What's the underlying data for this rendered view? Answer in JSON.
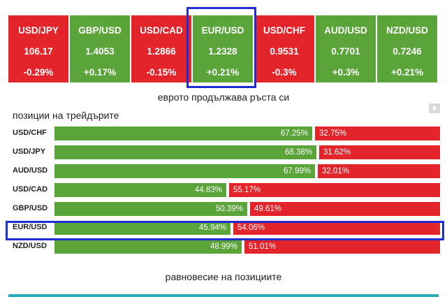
{
  "tiles": [
    {
      "pair": "USD/JPY",
      "price": "106.17",
      "change": "-0.29%",
      "color": "#e3242b"
    },
    {
      "pair": "GBP/USD",
      "price": "1.4053",
      "change": "+0.17%",
      "color": "#5aa43a"
    },
    {
      "pair": "USD/CAD",
      "price": "1.2866",
      "change": "-0.15%",
      "color": "#e3242b"
    },
    {
      "pair": "EUR/USD",
      "price": "1.2328",
      "change": "+0.21%",
      "color": "#5aa43a"
    },
    {
      "pair": "USD/CHF",
      "price": "0.9531",
      "change": "-0.3%",
      "color": "#e3242b"
    },
    {
      "pair": "AUD/USD",
      "price": "0.7701",
      "change": "+0.3%",
      "color": "#5aa43a"
    },
    {
      "pair": "NZD/USD",
      "price": "0.7246",
      "change": "+0.21%",
      "color": "#5aa43a"
    }
  ],
  "subtitle": "еврото продължава ръста си",
  "positions_title": "позиции на трейдърите",
  "positions": [
    {
      "pair": "USD/CHF",
      "long": 67.25,
      "short": 32.75,
      "long_label": "67.25%",
      "short_label": "32.75%"
    },
    {
      "pair": "USD/JPY",
      "long": 68.38,
      "short": 31.62,
      "long_label": "68.38%",
      "short_label": "31.62%"
    },
    {
      "pair": "AUD/USD",
      "long": 67.99,
      "short": 32.01,
      "long_label": "67.99%",
      "short_label": "32.01%"
    },
    {
      "pair": "USD/CAD",
      "long": 44.83,
      "short": 55.17,
      "long_label": "44.83%",
      "short_label": "55.17%"
    },
    {
      "pair": "GBP/USD",
      "long": 50.39,
      "short": 49.61,
      "long_label": "50.39%",
      "short_label": "49.61%"
    },
    {
      "pair": "EUR/USD",
      "long": 45.94,
      "short": 54.06,
      "long_label": "45.94%",
      "short_label": "54.06%"
    },
    {
      "pair": "NZD/USD",
      "long": 48.99,
      "short": 51.01,
      "long_label": "48.99%",
      "short_label": "51.01%"
    }
  ],
  "footer": "равновесие на позициите",
  "colors": {
    "buy": "#5aa43a",
    "sell": "#e3242b",
    "highlight": "#1f2dd1",
    "accent_line": "#29aab8"
  },
  "icons": {
    "play": "play-icon"
  }
}
